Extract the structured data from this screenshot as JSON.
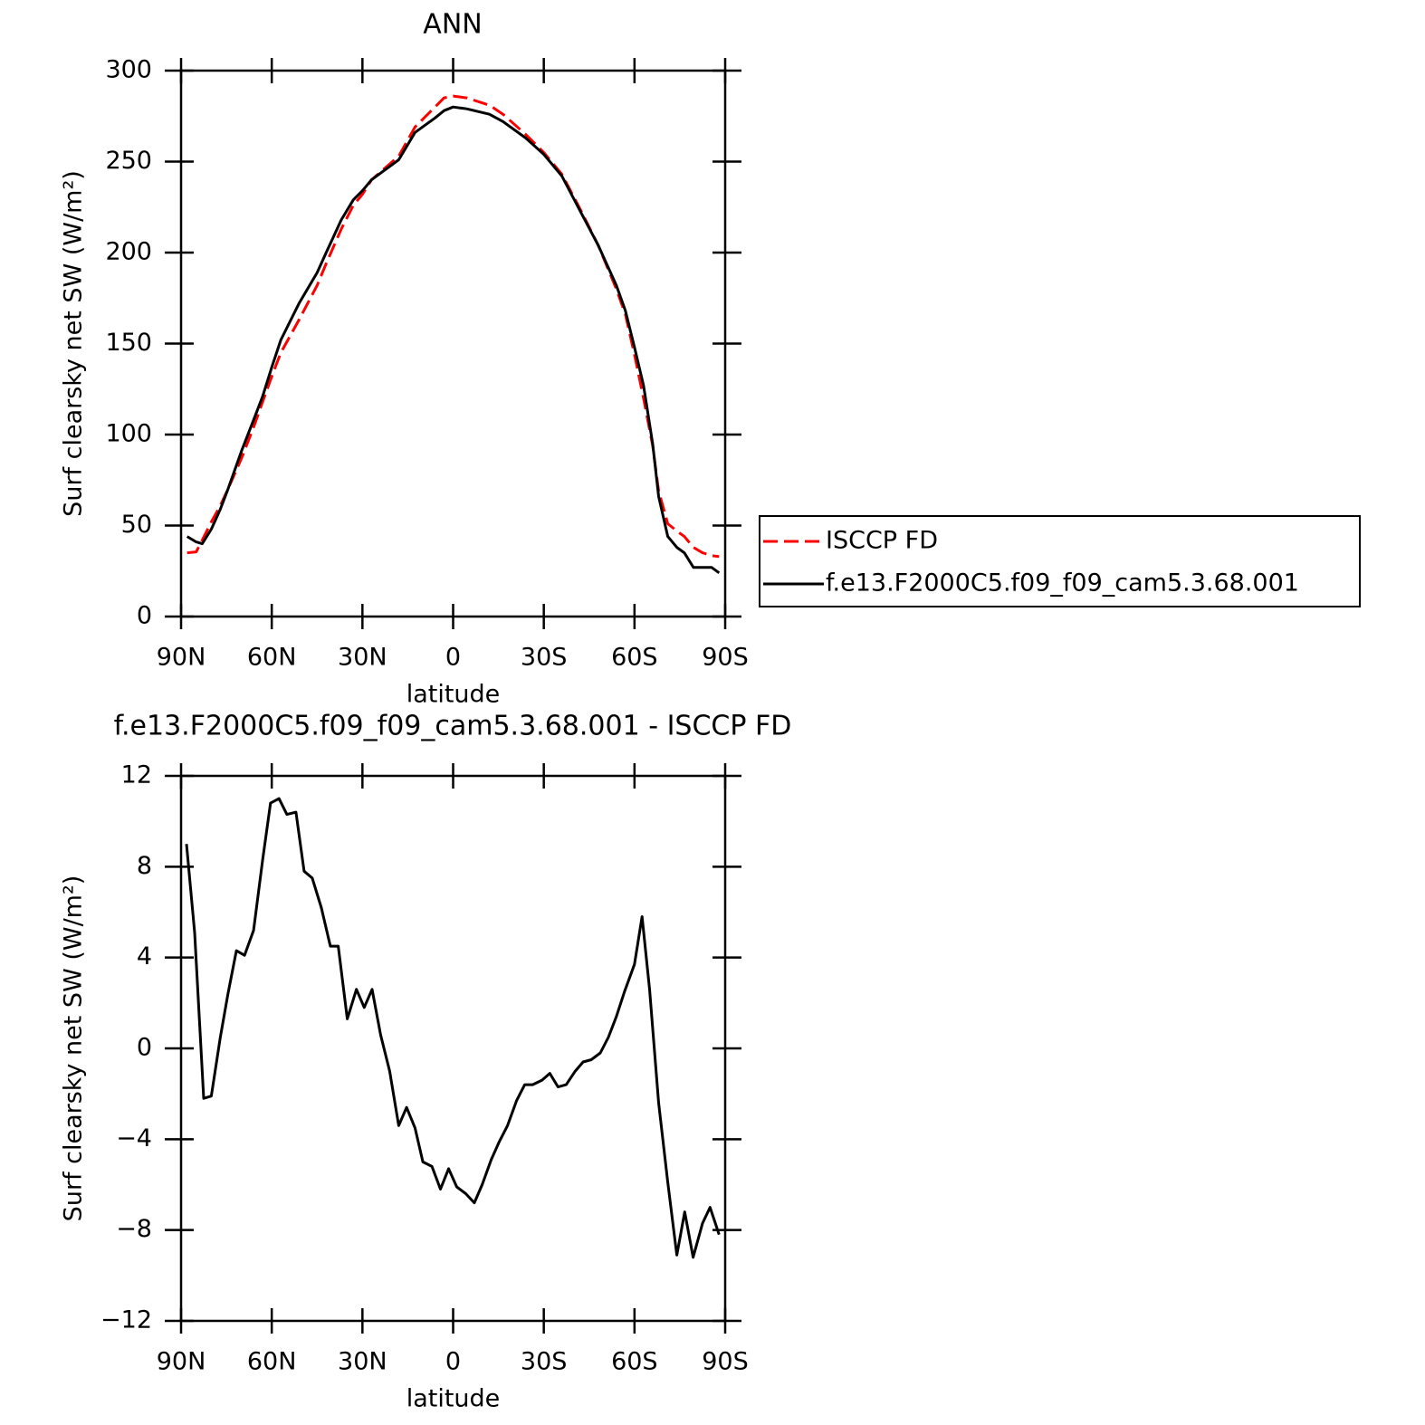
{
  "chart_data": [
    {
      "type": "line",
      "title": "ANN",
      "xlabel": "latitude",
      "ylabel": "Surf clearsky net SW (W/m²)",
      "x": [
        88,
        85,
        83,
        80,
        77,
        74.5,
        70,
        66,
        63,
        60,
        57,
        51,
        45,
        42,
        37,
        33,
        30,
        27,
        18,
        12.6,
        6,
        3,
        0,
        -4.5,
        -12,
        -16.5,
        -24,
        -30,
        -36,
        -42,
        -48,
        -54,
        -57,
        -60,
        -63,
        -66,
        -68,
        -71,
        -74,
        -76.5,
        -79.5,
        -82.5,
        -85.5,
        -88
      ],
      "series": [
        {
          "name": "ISCCP FD",
          "color": "#ff0000",
          "dashed": true,
          "values": [
            35,
            35.5,
            42,
            52,
            61,
            70,
            87,
            104,
            118,
            132,
            145,
            163,
            182,
            194,
            213,
            226,
            232,
            240,
            253,
            269,
            280,
            285,
            286,
            285,
            281,
            276,
            265,
            255,
            243,
            224,
            204,
            180,
            166,
            144,
            120,
            94,
            69,
            51,
            47,
            44,
            38,
            35,
            33.5,
            33
          ]
        },
        {
          "name": "f.e13.F2000C5.f09_f09_cam5.3.68.001",
          "color": "#000000",
          "dashed": false,
          "values": [
            44,
            41,
            40,
            48,
            59,
            70,
            91,
            108,
            121,
            137,
            152,
            172,
            189,
            200,
            218,
            229,
            234,
            240,
            251,
            266,
            274,
            278,
            280,
            279,
            276,
            272,
            263,
            254,
            242,
            223,
            204,
            182,
            168,
            148,
            127,
            95,
            66,
            44,
            38,
            35,
            27,
            27,
            27,
            24
          ]
        }
      ],
      "xlim": [
        90,
        -90
      ],
      "xticks": [
        {
          "value": 90,
          "label": "90N"
        },
        {
          "value": 60,
          "label": "60N"
        },
        {
          "value": 30,
          "label": "30N"
        },
        0,
        {
          "value": -30,
          "label": "30S"
        },
        {
          "value": -60,
          "label": "60S"
        },
        {
          "value": -90,
          "label": "90S"
        }
      ],
      "ylim": [
        0,
        300
      ],
      "yticks": [
        0,
        50,
        100,
        150,
        200,
        250,
        300
      ],
      "legend": "outside-right"
    },
    {
      "type": "line",
      "title": "f.e13.F2000C5.f09_f09_cam5.3.68.001 - ISCCP FD",
      "xlabel": "latitude",
      "ylabel": "Surf clearsky net SW (W/m²)",
      "x": [
        88.2,
        85.5,
        82.5,
        80,
        77,
        74.5,
        71.7,
        69,
        66,
        63,
        60.4,
        57.6,
        55,
        52,
        49.3,
        46.6,
        43.6,
        40.6,
        38,
        35,
        32,
        29.4,
        26.8,
        24,
        21,
        18,
        15.4,
        12.6,
        10,
        7,
        4.2,
        1.5,
        -1.2,
        -4.2,
        -7,
        -9.6,
        -12.6,
        -15.3,
        -18,
        -21,
        -23.7,
        -26.3,
        -29.4,
        -32,
        -34.7,
        -37.4,
        -40.4,
        -43,
        -45.7,
        -48.7,
        -51.4,
        -54,
        -56.7,
        -60,
        -62.5,
        -65,
        -68,
        -71,
        -74,
        -76.6,
        -79.4,
        -82.5,
        -85,
        -88
      ],
      "values": [
        9.0,
        5.1,
        -2.2,
        -2.1,
        0.5,
        2.4,
        4.3,
        4.1,
        5.2,
        8.3,
        10.8,
        11.0,
        10.3,
        10.4,
        7.8,
        7.5,
        6.2,
        4.5,
        4.5,
        1.3,
        2.6,
        1.8,
        2.6,
        0.6,
        -1.0,
        -3.4,
        -2.6,
        -3.5,
        -5.0,
        -5.2,
        -6.2,
        -5.3,
        -6.1,
        -6.4,
        -6.8,
        -6.0,
        -4.9,
        -4.1,
        -3.4,
        -2.3,
        -1.6,
        -1.6,
        -1.4,
        -1.1,
        -1.7,
        -1.6,
        -1.0,
        -0.6,
        -0.5,
        -0.2,
        0.5,
        1.4,
        2.5,
        3.7,
        5.8,
        2.6,
        -2.4,
        -5.9,
        -9.1,
        -7.2,
        -9.2,
        -7.7,
        -7.0,
        -8.2
      ],
      "color": "#000000",
      "xlim": [
        90,
        -90
      ],
      "xticks": [
        {
          "value": 90,
          "label": "90N"
        },
        {
          "value": 60,
          "label": "60N"
        },
        {
          "value": 30,
          "label": "30N"
        },
        0,
        {
          "value": -30,
          "label": "30S"
        },
        {
          "value": -60,
          "label": "60S"
        },
        {
          "value": -90,
          "label": "90S"
        }
      ],
      "ylim": [
        -12,
        12
      ],
      "yticks": [
        {
          "value": -12,
          "label": "−12"
        },
        {
          "value": -8,
          "label": "−8"
        },
        {
          "value": -4,
          "label": "−4"
        },
        0,
        4,
        8,
        12
      ]
    }
  ]
}
